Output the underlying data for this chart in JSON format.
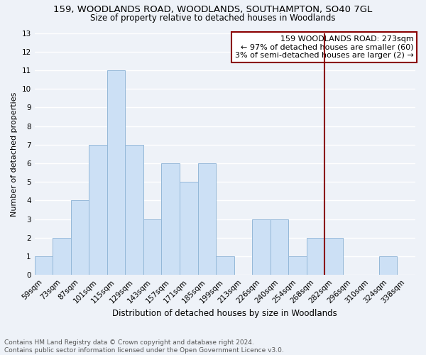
{
  "title1": "159, WOODLANDS ROAD, WOODLANDS, SOUTHAMPTON, SO40 7GL",
  "title2": "Size of property relative to detached houses in Woodlands",
  "xlabel": "Distribution of detached houses by size in Woodlands",
  "ylabel": "Number of detached properties",
  "categories": [
    "59sqm",
    "73sqm",
    "87sqm",
    "101sqm",
    "115sqm",
    "129sqm",
    "143sqm",
    "157sqm",
    "171sqm",
    "185sqm",
    "199sqm",
    "213sqm",
    "226sqm",
    "240sqm",
    "254sqm",
    "268sqm",
    "282sqm",
    "296sqm",
    "310sqm",
    "324sqm",
    "338sqm"
  ],
  "values": [
    1,
    2,
    4,
    7,
    11,
    7,
    3,
    6,
    5,
    6,
    1,
    0,
    3,
    3,
    1,
    2,
    2,
    0,
    0,
    1,
    0
  ],
  "bar_color": "#cce0f5",
  "bar_edge_color": "#94b8d8",
  "vline_color": "#8b0000",
  "vline_index": 15.5,
  "annotation_title": "159 WOODLANDS ROAD: 273sqm",
  "annotation_line1": "← 97% of detached houses are smaller (60)",
  "annotation_line2": "3% of semi-detached houses are larger (2) →",
  "annotation_box_color": "#8b0000",
  "ylim": [
    0,
    13
  ],
  "yticks": [
    0,
    1,
    2,
    3,
    4,
    5,
    6,
    7,
    8,
    9,
    10,
    11,
    12,
    13
  ],
  "footer": "Contains HM Land Registry data © Crown copyright and database right 2024.\nContains public sector information licensed under the Open Government Licence v3.0.",
  "background_color": "#eef2f8",
  "grid_color": "#ffffff",
  "title1_fontsize": 9.5,
  "title2_fontsize": 8.5,
  "xlabel_fontsize": 8.5,
  "ylabel_fontsize": 8.0,
  "tick_fontsize": 7.5,
  "annot_fontsize": 8.0,
  "footer_fontsize": 6.5
}
